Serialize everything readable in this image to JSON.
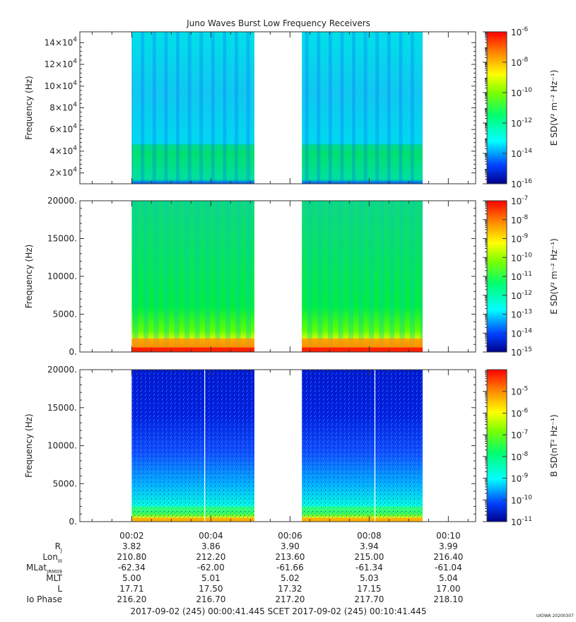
{
  "chart_data": [
    {
      "type": "heatmap",
      "title": "Juno Waves Burst Low Frequency Receivers",
      "ylabel": "Frequency (Hz)",
      "ylim": [
        10000,
        150000
      ],
      "yticks": [
        {
          "v": 20000,
          "base": "2×10",
          "exp": "4"
        },
        {
          "v": 40000,
          "base": "4×10",
          "exp": "4"
        },
        {
          "v": 60000,
          "base": "6×10",
          "exp": "4"
        },
        {
          "v": 80000,
          "base": "8×10",
          "exp": "4"
        },
        {
          "v": 100000,
          "base": "10×10",
          "exp": "4"
        },
        {
          "v": 120000,
          "base": "12×10",
          "exp": "4"
        },
        {
          "v": 140000,
          "base": "14×10",
          "exp": "4"
        }
      ],
      "colorbar": {
        "label": "E SD(V² m⁻² Hz⁻¹)",
        "range_exp": [
          -16,
          -6
        ],
        "ticks": [
          {
            "base": "10",
            "exp": "-6"
          },
          {
            "base": "10",
            "exp": "-8"
          },
          {
            "base": "10",
            "exp": "-10"
          },
          {
            "base": "10",
            "exp": "-12"
          },
          {
            "base": "10",
            "exp": "-14"
          },
          {
            "base": "10",
            "exp": "-16"
          }
        ]
      }
    },
    {
      "type": "heatmap",
      "ylabel": "Frequency (Hz)",
      "ylim": [
        0,
        20000
      ],
      "yticks": [
        {
          "v": 0,
          "label": "0."
        },
        {
          "v": 5000,
          "label": "5000."
        },
        {
          "v": 10000,
          "label": "10000."
        },
        {
          "v": 15000,
          "label": "15000."
        },
        {
          "v": 20000,
          "label": "20000."
        }
      ],
      "colorbar": {
        "label": "E SD(V² m⁻² Hz⁻¹)",
        "range_exp": [
          -15,
          -7
        ],
        "ticks": [
          {
            "base": "10",
            "exp": "-7"
          },
          {
            "base": "10",
            "exp": "-8"
          },
          {
            "base": "10",
            "exp": "-9"
          },
          {
            "base": "10",
            "exp": "-10"
          },
          {
            "base": "10",
            "exp": "-11"
          },
          {
            "base": "10",
            "exp": "-12"
          },
          {
            "base": "10",
            "exp": "-13"
          },
          {
            "base": "10",
            "exp": "-14"
          },
          {
            "base": "10",
            "exp": "-15"
          }
        ]
      }
    },
    {
      "type": "heatmap",
      "ylabel": "Frequency (Hz)",
      "ylim": [
        0,
        20000
      ],
      "yticks": [
        {
          "v": 0,
          "label": "0."
        },
        {
          "v": 5000,
          "label": "5000."
        },
        {
          "v": 10000,
          "label": "10000."
        },
        {
          "v": 15000,
          "label": "15000."
        },
        {
          "v": 20000,
          "label": "20000."
        }
      ],
      "colorbar": {
        "label": "B SD(nT² Hz⁻¹)",
        "range_exp": [
          -11,
          -4
        ],
        "ticks": [
          {
            "base": "10",
            "exp": "-5"
          },
          {
            "base": "10",
            "exp": "-6"
          },
          {
            "base": "10",
            "exp": "-7"
          },
          {
            "base": "10",
            "exp": "-8"
          },
          {
            "base": "10",
            "exp": "-9"
          },
          {
            "base": "10",
            "exp": "-10"
          },
          {
            "base": "10",
            "exp": "-11"
          }
        ]
      }
    }
  ],
  "time_axis": {
    "xlim_minutes": [
      0.69,
      10.69
    ],
    "bursts_minutes": [
      [
        2.0,
        5.1
      ],
      [
        6.3,
        9.35
      ]
    ],
    "ticks": [
      {
        "m": 2,
        "label": "00:02"
      },
      {
        "m": 4,
        "label": "00:04"
      },
      {
        "m": 6,
        "label": "00:06"
      },
      {
        "m": 8,
        "label": "00:08"
      },
      {
        "m": 10,
        "label": "00:10"
      }
    ],
    "range_label": "2017-09-02 (245) 00:00:41.445     SCET     2017-09-02 (245) 00:10:41.445"
  },
  "ephemeris": [
    {
      "label": "R",
      "sub": "J",
      "values": [
        "3.82",
        "3.86",
        "3.90",
        "3.94",
        "3.99"
      ]
    },
    {
      "label": "Lon",
      "sub": "III",
      "values": [
        "210.80",
        "212.20",
        "213.60",
        "215.00",
        "216.40"
      ]
    },
    {
      "label": "MLat",
      "sub": "JRM09",
      "values": [
        "-62.34",
        "-62.00",
        "-61.66",
        "-61.34",
        "-61.04"
      ]
    },
    {
      "label": "MLT",
      "sub": "",
      "values": [
        "5.00",
        "5.01",
        "5.02",
        "5.03",
        "5.04"
      ]
    },
    {
      "label": "L",
      "sub": "",
      "values": [
        "17.71",
        "17.50",
        "17.32",
        "17.15",
        "17.00"
      ]
    },
    {
      "label": "Io Phase",
      "sub": "",
      "values": [
        "216.20",
        "216.70",
        "217.20",
        "217.70",
        "218.10"
      ]
    }
  ],
  "footer": {
    "version": "UIOWA 20200307"
  }
}
